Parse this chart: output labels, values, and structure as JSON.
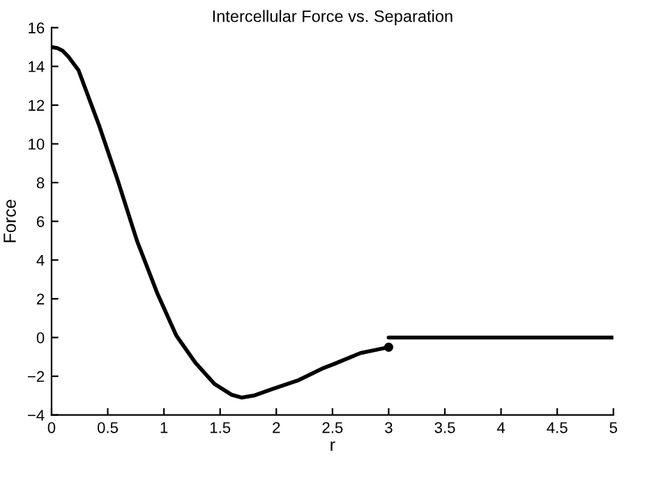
{
  "chart_data": {
    "type": "line",
    "title": "Intercellular Force vs. Separation",
    "xlabel": "r",
    "ylabel": "Force",
    "series": [
      {
        "color": "#000000",
        "x": [
          0,
          0.05,
          0.1,
          0.15,
          0.24,
          0.42,
          0.59,
          0.76,
          0.94,
          1.11,
          1.28,
          1.45,
          1.6,
          1.69,
          1.8,
          1.97,
          2.2,
          2.41,
          2.5,
          2.75,
          3
        ],
        "values": [
          15,
          14.95,
          14.8,
          14.5,
          13.8,
          11,
          8.1,
          5,
          2.3,
          0.1,
          -1.3,
          -2.4,
          -2.95,
          -3.1,
          -3,
          -2.65,
          -2.2,
          -1.6,
          -1.4,
          -0.8,
          -0.5
        ]
      },
      {
        "type": "scatter",
        "color": "#000000",
        "x": [
          3
        ],
        "values": [
          -0.5
        ]
      },
      {
        "color": "#000000",
        "x": [
          3,
          5
        ],
        "values": [
          0,
          0
        ]
      }
    ],
    "xlim": [
      0,
      5
    ],
    "ylim": [
      -4,
      16
    ],
    "xticks": [
      0,
      0.5,
      1,
      1.5,
      2,
      2.5,
      3,
      3.5,
      4,
      4.5,
      5
    ],
    "yticks": [
      -4,
      -2,
      0,
      2,
      4,
      6,
      8,
      10,
      12,
      14,
      16
    ],
    "grid": false,
    "legend": false
  }
}
